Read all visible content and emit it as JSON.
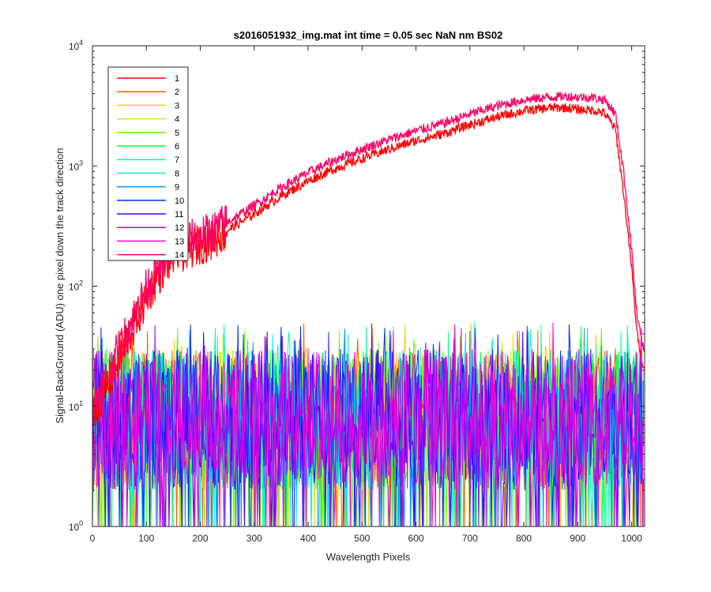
{
  "chart_data": {
    "type": "line",
    "title": "s2016051932_img.mat int time = 0.05 sec  NaN nm BS02",
    "xlabel": "Wavelength Pixels",
    "ylabel": "Signal-BackGround (ADU) one pixel down the track direction",
    "xlim": [
      0,
      1024
    ],
    "ylim": [
      1,
      10000
    ],
    "yscale": "log",
    "xticks": [
      "0",
      "100",
      "200",
      "300",
      "400",
      "500",
      "600",
      "700",
      "800",
      "900",
      "1000"
    ],
    "yticks": [
      {
        "base": "10",
        "exp": "0"
      },
      {
        "base": "10",
        "exp": "1"
      },
      {
        "base": "10",
        "exp": "2"
      },
      {
        "base": "10",
        "exp": "3"
      },
      {
        "base": "10",
        "exp": "4"
      }
    ],
    "grid": false,
    "legend_position": "top-left",
    "series": [
      {
        "name": "1",
        "color": "#ff0000",
        "kind": "signal",
        "points": [
          [
            0,
            8
          ],
          [
            20,
            13
          ],
          [
            40,
            20
          ],
          [
            60,
            32
          ],
          [
            80,
            50
          ],
          [
            100,
            80
          ],
          [
            120,
            120
          ],
          [
            140,
            160
          ],
          [
            160,
            190
          ],
          [
            180,
            205
          ],
          [
            200,
            225
          ],
          [
            220,
            240
          ],
          [
            250,
            290
          ],
          [
            300,
            400
          ],
          [
            350,
            560
          ],
          [
            400,
            750
          ],
          [
            450,
            950
          ],
          [
            500,
            1150
          ],
          [
            550,
            1380
          ],
          [
            600,
            1620
          ],
          [
            650,
            1850
          ],
          [
            700,
            2200
          ],
          [
            750,
            2550
          ],
          [
            800,
            2880
          ],
          [
            850,
            3050
          ],
          [
            880,
            3050
          ],
          [
            900,
            2950
          ],
          [
            930,
            2900
          ],
          [
            950,
            2750
          ],
          [
            970,
            2000
          ],
          [
            985,
            600
          ],
          [
            1000,
            140
          ],
          [
            1010,
            40
          ],
          [
            1023,
            20
          ]
        ]
      },
      {
        "name": "2",
        "color": "#ff5a00",
        "kind": "noise"
      },
      {
        "name": "3",
        "color": "#ffc800",
        "kind": "noise"
      },
      {
        "name": "4",
        "color": "#c8f000",
        "kind": "noise"
      },
      {
        "name": "5",
        "color": "#64ff00",
        "kind": "noise"
      },
      {
        "name": "6",
        "color": "#00ff32",
        "kind": "noise"
      },
      {
        "name": "7",
        "color": "#00ffa0",
        "kind": "noise"
      },
      {
        "name": "8",
        "color": "#00f0f0",
        "kind": "noise"
      },
      {
        "name": "9",
        "color": "#0096ff",
        "kind": "noise"
      },
      {
        "name": "10",
        "color": "#0028ff",
        "kind": "noise"
      },
      {
        "name": "11",
        "color": "#5000ff",
        "kind": "noise"
      },
      {
        "name": "12",
        "color": "#b400ff",
        "kind": "noise"
      },
      {
        "name": "13",
        "color": "#ff00d2",
        "kind": "noise"
      },
      {
        "name": "14",
        "color": "#ff0064",
        "kind": "signal",
        "points": [
          [
            0,
            10
          ],
          [
            20,
            15
          ],
          [
            40,
            24
          ],
          [
            60,
            38
          ],
          [
            80,
            60
          ],
          [
            100,
            95
          ],
          [
            120,
            140
          ],
          [
            140,
            190
          ],
          [
            160,
            225
          ],
          [
            180,
            240
          ],
          [
            200,
            260
          ],
          [
            220,
            280
          ],
          [
            250,
            340
          ],
          [
            300,
            470
          ],
          [
            350,
            660
          ],
          [
            400,
            880
          ],
          [
            450,
            1120
          ],
          [
            500,
            1380
          ],
          [
            550,
            1660
          ],
          [
            600,
            1960
          ],
          [
            650,
            2250
          ],
          [
            700,
            2700
          ],
          [
            750,
            3150
          ],
          [
            800,
            3550
          ],
          [
            850,
            3750
          ],
          [
            880,
            3800
          ],
          [
            900,
            3750
          ],
          [
            930,
            3700
          ],
          [
            950,
            3550
          ],
          [
            970,
            2700
          ],
          [
            985,
            900
          ],
          [
            1000,
            200
          ],
          [
            1010,
            55
          ],
          [
            1023,
            28
          ]
        ]
      }
    ],
    "noise_range": [
      1,
      50
    ]
  }
}
